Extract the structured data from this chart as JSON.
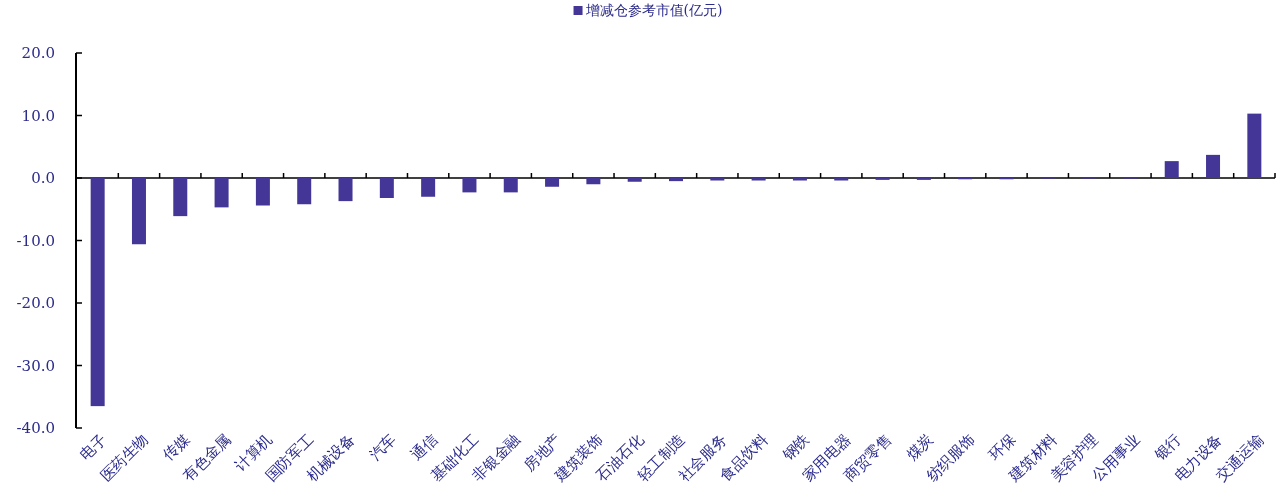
{
  "chart_data": {
    "type": "bar",
    "categories": [
      "电子",
      "医药生物",
      "传媒",
      "有色金属",
      "计算机",
      "国防军工",
      "机械设备",
      "汽车",
      "通信",
      "基础化工",
      "非银金融",
      "房地产",
      "建筑装饰",
      "石油石化",
      "轻工制造",
      "社会服务",
      "食品饮料",
      "钢铁",
      "家用电器",
      "商贸零售",
      "煤炭",
      "纺织服饰",
      "环保",
      "建筑材料",
      "美容护理",
      "公用事业",
      "银行",
      "电力设备",
      "交通运输"
    ],
    "series": [
      {
        "name": "增减仓参考市值(亿元)",
        "color": "#433696",
        "values": [
          -36.5,
          -10.6,
          -6.1,
          -4.7,
          -4.4,
          -4.2,
          -3.7,
          -3.2,
          -3.0,
          -2.3,
          -2.3,
          -1.4,
          -1.0,
          -0.6,
          -0.5,
          -0.4,
          -0.4,
          -0.4,
          -0.4,
          -0.3,
          -0.3,
          -0.2,
          -0.2,
          -0.1,
          -0.1,
          -0.1,
          2.7,
          3.7,
          10.3
        ]
      }
    ],
    "ylim": [
      -40,
      20
    ],
    "yticks": [
      {
        "value": -40,
        "label": "-40.0"
      },
      {
        "value": -30,
        "label": "-30.0"
      },
      {
        "value": -20,
        "label": "-20.0"
      },
      {
        "value": -10,
        "label": "-10.0"
      },
      {
        "value": 0,
        "label": "0.0"
      },
      {
        "value": 10,
        "label": "10.0"
      },
      {
        "value": 20,
        "label": "20.0"
      }
    ],
    "legend": "top"
  }
}
